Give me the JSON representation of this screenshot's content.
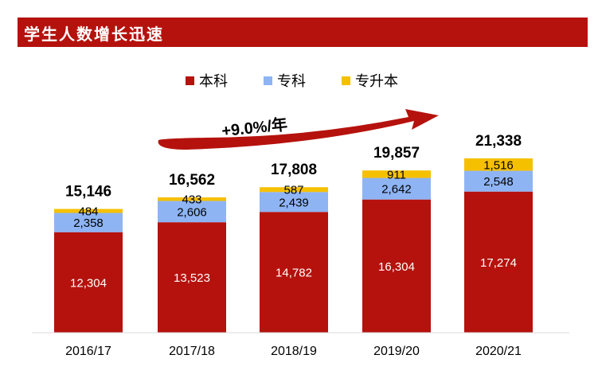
{
  "header": {
    "title": "学生人数增长迅速"
  },
  "annotation": {
    "growth_text": "+9.0%/年"
  },
  "chart_data": {
    "type": "bar",
    "stacked": true,
    "categories": [
      "2016/17",
      "2017/18",
      "2018/19",
      "2019/20",
      "2020/21"
    ],
    "series": [
      {
        "name": "本科",
        "color": "#b5120d",
        "label_color": "#ffffff",
        "values": [
          12304,
          13523,
          14782,
          16304,
          17274
        ]
      },
      {
        "name": "专科",
        "color": "#8eb4f4",
        "label_color": "#000000",
        "values": [
          2358,
          2606,
          2439,
          2642,
          2548
        ]
      },
      {
        "name": "专升本",
        "color": "#f5c000",
        "label_color": "#000000",
        "values": [
          484,
          433,
          587,
          911,
          1516
        ]
      }
    ],
    "totals": [
      15146,
      16562,
      17808,
      19857,
      21338
    ],
    "segment_labels": [
      [
        "12,304",
        "2,358",
        "484"
      ],
      [
        "13,523",
        "2,606",
        "433"
      ],
      [
        "14,782",
        "2,439",
        "587"
      ],
      [
        "16,304",
        "2,642",
        "911"
      ],
      [
        "17,274",
        "2,548",
        "1,516"
      ]
    ],
    "total_labels": [
      "15,146",
      "16,562",
      "17,808",
      "19,857",
      "21,338"
    ],
    "legend_position": "top-center",
    "grid": false,
    "ylim": [
      0,
      21338
    ]
  }
}
